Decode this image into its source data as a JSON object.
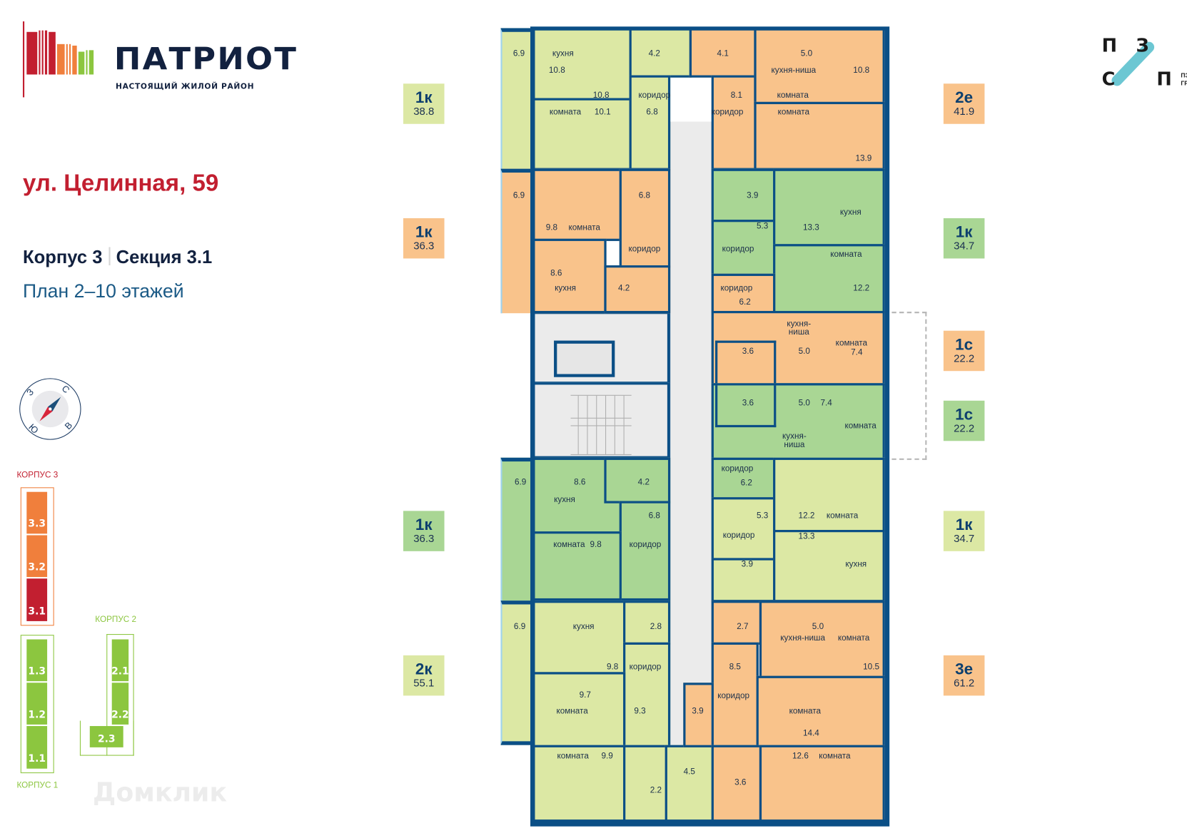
{
  "header": {
    "logo_text": "ПАТРИОТ",
    "logo_tagline": "НАСТОЯЩИЙ ЖИЛОЙ РАЙОН",
    "address": "ул. Целинная, 59",
    "building": "Корпус 3",
    "section": "Секция 3.1",
    "floors": "План 2–10 этажей"
  },
  "developer_logo": {
    "letters": [
      "П",
      "З",
      "С",
      "П"
    ],
    "name_line1": "ПЗСП",
    "name_line2": "ГРУПП",
    "accent": "#6cc7d3"
  },
  "compass": {
    "north": "С",
    "east": "В",
    "south": "Ю",
    "west": "З"
  },
  "site_map": {
    "korpus3": {
      "label": "КОРПУС 3",
      "color": "#c21f30",
      "sections": [
        "3.3",
        "3.2",
        "3.1"
      ],
      "selected": "3.1"
    },
    "korpus2": {
      "label": "КОРПУС 2",
      "color": "#8cc63f",
      "sections": [
        "2.1",
        "2.2",
        "2.3"
      ]
    },
    "korpus1": {
      "label": "КОРПУС 1",
      "color": "#8cc63f",
      "sections": [
        "1.3",
        "1.2",
        "1.1"
      ]
    }
  },
  "watermark": "Домклик",
  "colors": {
    "wall": "#0b4f86",
    "light_green": "#dce8a4",
    "mid_green": "#a9d694",
    "orange": "#f9c38b",
    "common": "#ebebeb"
  },
  "apartments": [
    {
      "type": "1к",
      "area": "38.8",
      "color": "light_green",
      "labels": [
        "6.9",
        "кухня",
        "10.8",
        "10.8",
        "комната",
        "10.1",
        "4.2",
        "коридор",
        "6.8"
      ]
    },
    {
      "type": "2е",
      "area": "41.9",
      "color": "orange",
      "labels": [
        "4.1",
        "8.1",
        "коридор",
        "5.0",
        "кухня-ниша",
        "10.8",
        "комната",
        "комната",
        "13.9"
      ]
    },
    {
      "type": "1к",
      "area": "36.3",
      "color": "orange",
      "labels": [
        "6.9",
        "6.8",
        "9.8",
        "комната",
        "коридор",
        "8.6",
        "кухня",
        "4.2"
      ]
    },
    {
      "type": "1к",
      "area": "34.7",
      "color": "mid_green",
      "labels": [
        "3.9",
        "5.3",
        "коридор",
        "кухня",
        "13.3",
        "комната",
        "12.2"
      ]
    },
    {
      "type": "1с",
      "area": "22.2",
      "color": "orange",
      "labels": [
        "коридор",
        "6.2",
        "кухня-ниша",
        "3.6",
        "5.0",
        "комната",
        "7.4"
      ]
    },
    {
      "type": "1с",
      "area": "22.2",
      "color": "mid_green",
      "labels": [
        "3.6",
        "5.0",
        "7.4",
        "комната",
        "кухня-ниша",
        "коридор",
        "6.2"
      ]
    },
    {
      "type": "1к",
      "area": "36.3",
      "color": "mid_green",
      "labels": [
        "6.9",
        "8.6",
        "кухня",
        "4.2",
        "6.8",
        "коридор",
        "комната",
        "9.8"
      ]
    },
    {
      "type": "1к",
      "area": "34.7",
      "color": "light_green",
      "labels": [
        "5.3",
        "коридор",
        "3.9",
        "12.2",
        "комната",
        "13.3",
        "кухня"
      ]
    },
    {
      "type": "2к",
      "area": "55.1",
      "color": "light_green",
      "labels": [
        "6.9",
        "кухня",
        "9.8",
        "2.8",
        "коридор",
        "9.3",
        "9.7",
        "комната",
        "комната",
        "9.9",
        "2.2",
        "4.5"
      ]
    },
    {
      "type": "3е",
      "area": "61.2",
      "color": "orange",
      "labels": [
        "2.7",
        "8.5",
        "коридор",
        "5.0",
        "кухня-ниша",
        "комната",
        "10.5",
        "комната",
        "14.4",
        "3.9",
        "3.6",
        "12.6",
        "комната"
      ]
    }
  ]
}
